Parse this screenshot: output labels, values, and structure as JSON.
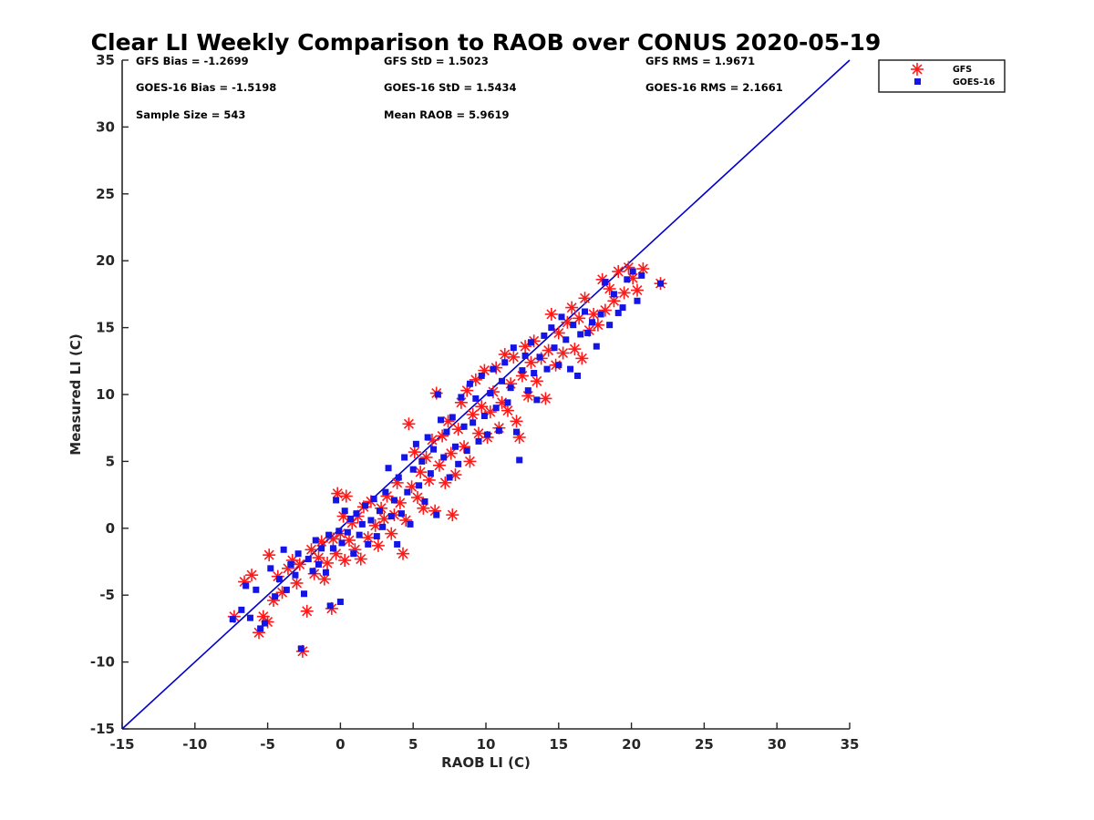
{
  "chart_data": {
    "type": "scatter",
    "title": "Clear LI Weekly Comparison to RAOB over CONUS 2020-05-19",
    "xlabel": "RAOB LI (C)",
    "ylabel": "Measured LI (C)",
    "xlim": [
      -15,
      35
    ],
    "ylim": [
      -15,
      35
    ],
    "xticks": [
      -15,
      -10,
      -5,
      0,
      5,
      10,
      15,
      20,
      25,
      30,
      35
    ],
    "yticks": [
      -15,
      -10,
      -5,
      0,
      5,
      10,
      15,
      20,
      25,
      30,
      35
    ],
    "grid": false,
    "legend_position": "top-right-outside",
    "reference_line": {
      "name": "1:1 line",
      "from": [
        -15,
        -15
      ],
      "to": [
        35,
        35
      ],
      "color": "#0000cc"
    },
    "stats": [
      {
        "label": "GFS Bias = -1.2699"
      },
      {
        "label": "GFS StD = 1.5023"
      },
      {
        "label": "GFS RMS = 1.9671"
      },
      {
        "label": "GOES-16 Bias = -1.5198"
      },
      {
        "label": "GOES-16 StD = 1.5434"
      },
      {
        "label": "GOES-16 RMS = 2.1661"
      },
      {
        "label": "Sample Size = 543"
      },
      {
        "label": "Mean RAOB = 5.9619"
      }
    ],
    "series": [
      {
        "name": "GFS",
        "marker": "asterisk",
        "color": "#ff1a1a",
        "points": [
          [
            -7.3,
            -6.6
          ],
          [
            -6.6,
            -4.0
          ],
          [
            -6.1,
            -3.5
          ],
          [
            -5.6,
            -7.8
          ],
          [
            -5.3,
            -6.6
          ],
          [
            -5.0,
            -7.0
          ],
          [
            -4.9,
            -2.0
          ],
          [
            -4.6,
            -5.4
          ],
          [
            -4.3,
            -3.6
          ],
          [
            -4.0,
            -4.8
          ],
          [
            -3.6,
            -3.0
          ],
          [
            -3.3,
            -2.4
          ],
          [
            -3.0,
            -4.1
          ],
          [
            -2.8,
            -2.7
          ],
          [
            -2.6,
            -9.2
          ],
          [
            -2.3,
            -6.2
          ],
          [
            -2.0,
            -1.6
          ],
          [
            -1.8,
            -3.4
          ],
          [
            -1.5,
            -2.2
          ],
          [
            -1.3,
            -1.0
          ],
          [
            -1.1,
            -3.8
          ],
          [
            -0.9,
            -2.6
          ],
          [
            -0.6,
            -6.0
          ],
          [
            -0.5,
            -0.8
          ],
          [
            -0.3,
            -1.9
          ],
          [
            -0.2,
            2.6
          ],
          [
            0.0,
            -0.4
          ],
          [
            0.2,
            0.9
          ],
          [
            0.3,
            -2.4
          ],
          [
            0.4,
            2.4
          ],
          [
            0.6,
            -0.9
          ],
          [
            0.8,
            0.4
          ],
          [
            1.0,
            -1.6
          ],
          [
            1.2,
            0.9
          ],
          [
            1.4,
            -2.3
          ],
          [
            1.6,
            1.6
          ],
          [
            1.9,
            -0.7
          ],
          [
            2.1,
            2.0
          ],
          [
            2.4,
            0.2
          ],
          [
            2.6,
            -1.3
          ],
          [
            2.8,
            1.5
          ],
          [
            3.0,
            0.7
          ],
          [
            3.2,
            2.4
          ],
          [
            3.5,
            -0.4
          ],
          [
            3.7,
            1.0
          ],
          [
            3.9,
            3.4
          ],
          [
            4.1,
            1.9
          ],
          [
            4.3,
            -1.9
          ],
          [
            4.5,
            0.6
          ],
          [
            4.7,
            7.8
          ],
          [
            4.9,
            3.1
          ],
          [
            5.1,
            5.7
          ],
          [
            5.3,
            2.3
          ],
          [
            5.5,
            4.2
          ],
          [
            5.7,
            1.5
          ],
          [
            5.9,
            5.3
          ],
          [
            6.1,
            3.6
          ],
          [
            6.3,
            6.6
          ],
          [
            6.5,
            1.3
          ],
          [
            6.6,
            10.1
          ],
          [
            6.8,
            4.7
          ],
          [
            7.0,
            6.9
          ],
          [
            7.2,
            3.4
          ],
          [
            7.4,
            8.0
          ],
          [
            7.6,
            5.6
          ],
          [
            7.7,
            1.0
          ],
          [
            7.9,
            4.0
          ],
          [
            8.1,
            7.4
          ],
          [
            8.3,
            9.4
          ],
          [
            8.5,
            6.1
          ],
          [
            8.7,
            10.3
          ],
          [
            8.9,
            5.0
          ],
          [
            9.1,
            8.5
          ],
          [
            9.3,
            11.1
          ],
          [
            9.5,
            7.1
          ],
          [
            9.7,
            9.1
          ],
          [
            9.9,
            11.8
          ],
          [
            10.1,
            6.8
          ],
          [
            10.3,
            8.7
          ],
          [
            10.5,
            10.2
          ],
          [
            10.7,
            12.0
          ],
          [
            10.9,
            7.5
          ],
          [
            11.1,
            9.4
          ],
          [
            11.3,
            13.0
          ],
          [
            11.5,
            8.8
          ],
          [
            11.7,
            10.8
          ],
          [
            11.9,
            12.8
          ],
          [
            12.1,
            8.0
          ],
          [
            12.3,
            6.8
          ],
          [
            12.5,
            11.4
          ],
          [
            12.7,
            13.6
          ],
          [
            12.9,
            9.9
          ],
          [
            13.1,
            12.4
          ],
          [
            13.3,
            14.0
          ],
          [
            13.5,
            11.0
          ],
          [
            13.8,
            12.7
          ],
          [
            14.1,
            9.7
          ],
          [
            14.3,
            13.3
          ],
          [
            14.5,
            16.0
          ],
          [
            14.8,
            12.2
          ],
          [
            15.0,
            14.6
          ],
          [
            15.3,
            13.1
          ],
          [
            15.6,
            15.4
          ],
          [
            15.9,
            16.5
          ],
          [
            16.1,
            13.4
          ],
          [
            16.4,
            15.7
          ],
          [
            16.6,
            12.7
          ],
          [
            16.8,
            17.2
          ],
          [
            17.1,
            14.8
          ],
          [
            17.4,
            16.0
          ],
          [
            17.7,
            15.2
          ],
          [
            18.0,
            18.6
          ],
          [
            18.2,
            16.3
          ],
          [
            18.5,
            17.9
          ],
          [
            18.8,
            17.0
          ],
          [
            19.1,
            19.2
          ],
          [
            19.5,
            17.6
          ],
          [
            19.8,
            19.5
          ],
          [
            20.1,
            18.7
          ],
          [
            20.4,
            17.8
          ],
          [
            20.8,
            19.4
          ],
          [
            22.0,
            18.3
          ]
        ]
      },
      {
        "name": "GOES-16",
        "marker": "square",
        "color": "#1414e6",
        "points": [
          [
            -7.4,
            -6.8
          ],
          [
            -6.8,
            -6.1
          ],
          [
            -6.5,
            -4.3
          ],
          [
            -6.2,
            -6.7
          ],
          [
            -5.8,
            -4.6
          ],
          [
            -5.5,
            -7.5
          ],
          [
            -5.2,
            -7.1
          ],
          [
            -4.8,
            -3.0
          ],
          [
            -4.5,
            -5.1
          ],
          [
            -4.2,
            -3.8
          ],
          [
            -3.9,
            -1.6
          ],
          [
            -3.7,
            -4.6
          ],
          [
            -3.4,
            -2.7
          ],
          [
            -3.1,
            -3.5
          ],
          [
            -2.9,
            -1.9
          ],
          [
            -2.7,
            -9.0
          ],
          [
            -2.5,
            -4.9
          ],
          [
            -2.2,
            -2.3
          ],
          [
            -1.9,
            -3.2
          ],
          [
            -1.7,
            -0.9
          ],
          [
            -1.5,
            -2.7
          ],
          [
            -1.3,
            -1.5
          ],
          [
            -1.0,
            -3.3
          ],
          [
            -0.8,
            -0.5
          ],
          [
            -0.7,
            -5.8
          ],
          [
            -0.5,
            -1.5
          ],
          [
            -0.3,
            2.1
          ],
          [
            -0.1,
            -0.2
          ],
          [
            0.0,
            -5.5
          ],
          [
            0.1,
            -1.1
          ],
          [
            0.3,
            1.3
          ],
          [
            0.5,
            -0.3
          ],
          [
            0.7,
            0.7
          ],
          [
            0.9,
            -1.9
          ],
          [
            1.1,
            1.1
          ],
          [
            1.3,
            -0.5
          ],
          [
            1.5,
            0.3
          ],
          [
            1.7,
            1.7
          ],
          [
            1.9,
            -1.2
          ],
          [
            2.1,
            0.6
          ],
          [
            2.3,
            2.2
          ],
          [
            2.5,
            -0.6
          ],
          [
            2.7,
            1.3
          ],
          [
            2.9,
            0.1
          ],
          [
            3.1,
            2.7
          ],
          [
            3.3,
            4.5
          ],
          [
            3.5,
            0.9
          ],
          [
            3.7,
            2.1
          ],
          [
            3.9,
            -1.2
          ],
          [
            4.0,
            3.8
          ],
          [
            4.2,
            1.1
          ],
          [
            4.4,
            5.3
          ],
          [
            4.6,
            2.7
          ],
          [
            4.8,
            0.3
          ],
          [
            5.0,
            4.4
          ],
          [
            5.2,
            6.3
          ],
          [
            5.4,
            3.2
          ],
          [
            5.6,
            5.0
          ],
          [
            5.8,
            2.0
          ],
          [
            6.0,
            6.8
          ],
          [
            6.2,
            4.1
          ],
          [
            6.4,
            5.9
          ],
          [
            6.6,
            1.0
          ],
          [
            6.7,
            10.0
          ],
          [
            6.9,
            8.1
          ],
          [
            7.1,
            5.3
          ],
          [
            7.3,
            7.2
          ],
          [
            7.5,
            3.8
          ],
          [
            7.7,
            8.3
          ],
          [
            7.9,
            6.1
          ],
          [
            8.1,
            4.8
          ],
          [
            8.3,
            9.8
          ],
          [
            8.5,
            7.6
          ],
          [
            8.7,
            5.8
          ],
          [
            8.9,
            10.8
          ],
          [
            9.1,
            7.9
          ],
          [
            9.3,
            9.7
          ],
          [
            9.5,
            6.5
          ],
          [
            9.7,
            11.4
          ],
          [
            9.9,
            8.4
          ],
          [
            10.1,
            7.0
          ],
          [
            10.3,
            10.1
          ],
          [
            10.5,
            11.9
          ],
          [
            10.7,
            9.0
          ],
          [
            10.9,
            7.3
          ],
          [
            11.1,
            11.0
          ],
          [
            11.3,
            12.4
          ],
          [
            11.5,
            9.4
          ],
          [
            11.7,
            10.5
          ],
          [
            11.9,
            13.5
          ],
          [
            12.1,
            7.2
          ],
          [
            12.3,
            5.1
          ],
          [
            12.5,
            11.8
          ],
          [
            12.7,
            12.9
          ],
          [
            12.9,
            10.3
          ],
          [
            13.1,
            13.9
          ],
          [
            13.3,
            11.6
          ],
          [
            13.5,
            9.6
          ],
          [
            13.7,
            12.8
          ],
          [
            14.0,
            14.4
          ],
          [
            14.2,
            11.9
          ],
          [
            14.5,
            15.0
          ],
          [
            14.7,
            13.5
          ],
          [
            15.0,
            12.2
          ],
          [
            15.2,
            15.8
          ],
          [
            15.5,
            14.1
          ],
          [
            15.8,
            11.9
          ],
          [
            16.0,
            15.2
          ],
          [
            16.3,
            11.4
          ],
          [
            16.5,
            14.5
          ],
          [
            16.8,
            16.2
          ],
          [
            17.0,
            14.6
          ],
          [
            17.3,
            15.4
          ],
          [
            17.6,
            13.6
          ],
          [
            17.9,
            16.0
          ],
          [
            18.2,
            18.4
          ],
          [
            18.5,
            15.2
          ],
          [
            18.8,
            17.5
          ],
          [
            19.1,
            16.1
          ],
          [
            19.4,
            16.5
          ],
          [
            19.7,
            18.6
          ],
          [
            20.1,
            19.2
          ],
          [
            20.4,
            17.0
          ],
          [
            20.7,
            18.9
          ],
          [
            22.0,
            18.3
          ]
        ]
      }
    ]
  }
}
